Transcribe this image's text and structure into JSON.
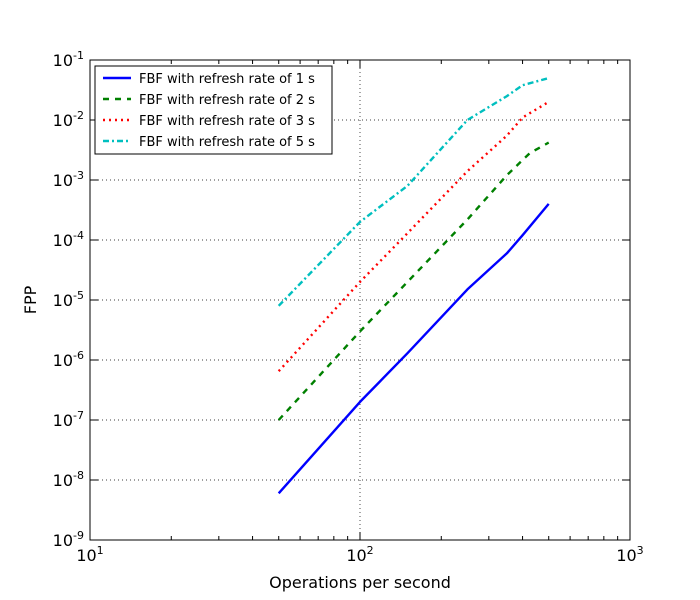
{
  "chart_data": {
    "type": "line",
    "title": "",
    "xlabel": "Operations per second",
    "ylabel": "FPP",
    "x_scale": "log",
    "y_scale": "log",
    "xlim": [
      10,
      1000
    ],
    "ylim": [
      1e-09,
      0.1
    ],
    "grid": true,
    "legend_position": "top-left",
    "x_ticks": [
      {
        "value": 10,
        "base": "10",
        "exp": "1"
      },
      {
        "value": 100,
        "base": "10",
        "exp": "2"
      },
      {
        "value": 1000,
        "base": "10",
        "exp": "3"
      }
    ],
    "y_ticks": [
      {
        "value": 1e-09,
        "base": "10",
        "exp": "-9"
      },
      {
        "value": 1e-08,
        "base": "10",
        "exp": "-8"
      },
      {
        "value": 1e-07,
        "base": "10",
        "exp": "-7"
      },
      {
        "value": 1e-06,
        "base": "10",
        "exp": "-6"
      },
      {
        "value": 1e-05,
        "base": "10",
        "exp": "-5"
      },
      {
        "value": 0.0001,
        "base": "10",
        "exp": "-4"
      },
      {
        "value": 0.001,
        "base": "10",
        "exp": "-3"
      },
      {
        "value": 0.01,
        "base": "10",
        "exp": "-2"
      },
      {
        "value": 0.1,
        "base": "10",
        "exp": "-1"
      }
    ],
    "series": [
      {
        "name": "FBF with refresh rate of 1 s",
        "color": "#0000ff",
        "style": "solid",
        "points": [
          [
            50,
            6e-09
          ],
          [
            100,
            2e-07
          ],
          [
            150,
            1.3e-06
          ],
          [
            250,
            1.5e-05
          ],
          [
            350,
            6e-05
          ],
          [
            400,
            0.00012
          ],
          [
            500,
            0.0004
          ]
        ]
      },
      {
        "name": "FBF with refresh rate of 2 s",
        "color": "#008000",
        "style": "dashed",
        "points": [
          [
            50,
            1e-07
          ],
          [
            100,
            3e-06
          ],
          [
            150,
            2e-05
          ],
          [
            250,
            0.00022
          ],
          [
            350,
            0.0012
          ],
          [
            425,
            0.0028
          ],
          [
            500,
            0.0042
          ]
        ]
      },
      {
        "name": "FBF with refresh rate of 3 s",
        "color": "#ff0000",
        "style": "dotted",
        "points": [
          [
            50,
            6.5e-07
          ],
          [
            100,
            2e-05
          ],
          [
            150,
            0.00013
          ],
          [
            250,
            0.0014
          ],
          [
            350,
            0.0055
          ],
          [
            400,
            0.011
          ],
          [
            500,
            0.02
          ]
        ]
      },
      {
        "name": "FBF with refresh rate of 5 s",
        "color": "#00bfbf",
        "style": "dashdot",
        "points": [
          [
            50,
            8e-06
          ],
          [
            100,
            0.0002
          ],
          [
            150,
            0.0008
          ],
          [
            250,
            0.01
          ],
          [
            350,
            0.025
          ],
          [
            400,
            0.038
          ],
          [
            500,
            0.05
          ]
        ]
      }
    ]
  }
}
